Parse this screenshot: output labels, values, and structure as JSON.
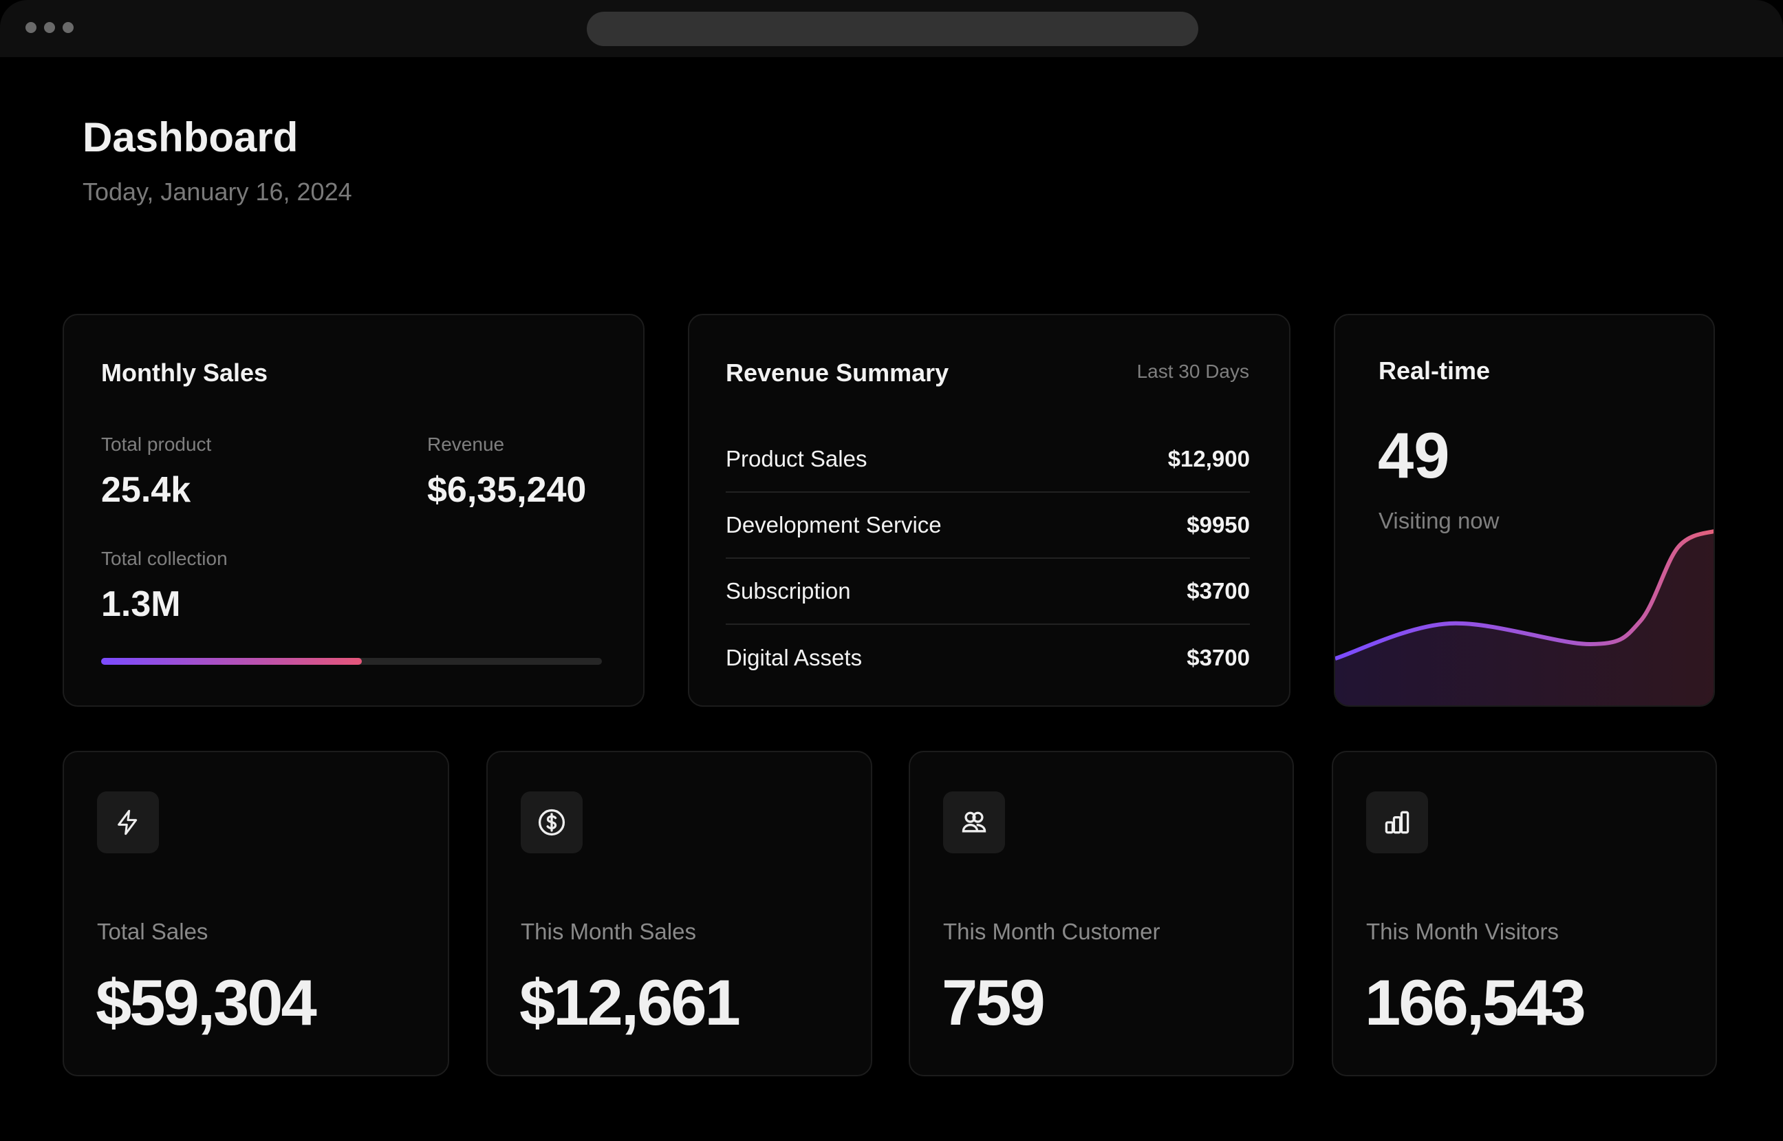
{
  "header": {
    "title": "Dashboard",
    "date": "Today, January 16, 2024"
  },
  "monthly_sales": {
    "title": "Monthly Sales",
    "total_product_label": "Total product",
    "total_product": "25.4k",
    "revenue_label": "Revenue",
    "revenue": "$6,35,240",
    "total_collection_label": "Total collection",
    "total_collection": "1.3M",
    "progress_fraction": 0.52
  },
  "revenue_summary": {
    "title": "Revenue Summary",
    "period": "Last 30 Days",
    "rows": [
      {
        "label": "Product Sales",
        "amount": "$12,900"
      },
      {
        "label": "Development Service",
        "amount": "$9950"
      },
      {
        "label": "Subscription",
        "amount": "$3700"
      },
      {
        "label": "Digital Assets",
        "amount": "$3700"
      }
    ]
  },
  "realtime": {
    "title": "Real-time",
    "count": "49",
    "caption": "Visiting now",
    "sparkline": [
      24,
      41,
      31,
      42,
      78,
      86
    ],
    "colors": {
      "start": "#7b4cff",
      "mid": "#a457d0",
      "end": "#e5607a"
    }
  },
  "stats": [
    {
      "icon": "lightning-icon",
      "label": "Total Sales",
      "value": "$59,304"
    },
    {
      "icon": "dollar-circle-icon",
      "label": "This Month Sales",
      "value": "$12,661"
    },
    {
      "icon": "users-icon",
      "label": "This Month Customer",
      "value": "759"
    },
    {
      "icon": "bar-chart-icon",
      "label": "This Month Visitors",
      "value": "166,543"
    }
  ]
}
